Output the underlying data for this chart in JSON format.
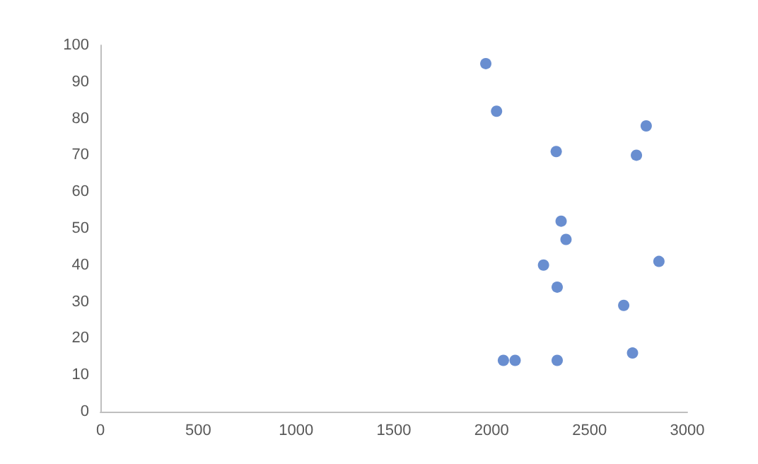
{
  "chart_data": {
    "type": "scatter",
    "x": [
      1970,
      2025,
      2330,
      2790,
      2740,
      2355,
      2380,
      2265,
      2855,
      2335,
      2675,
      2720,
      2060,
      2120,
      2335
    ],
    "values": [
      95,
      82,
      71,
      78,
      70,
      52,
      47,
      40,
      41,
      34,
      29,
      16,
      14,
      14,
      14
    ],
    "color": "#4472c4",
    "marker": "circle",
    "xlim": [
      0,
      3000
    ],
    "xticks": [
      0,
      500,
      1000,
      1500,
      2000,
      2500,
      3000
    ],
    "ylim": [
      0,
      100
    ],
    "yticks": [
      0,
      10,
      20,
      30,
      40,
      50,
      60,
      70,
      80,
      90,
      100
    ],
    "grid": false
  }
}
